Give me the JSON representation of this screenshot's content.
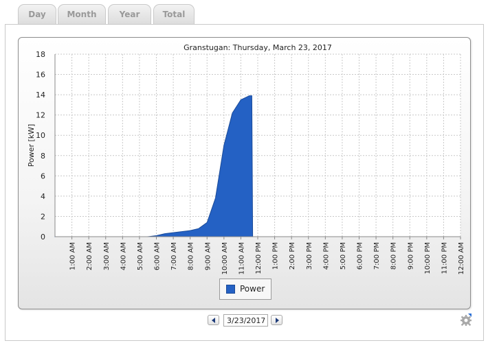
{
  "tabs": [
    {
      "label": "Day",
      "active": true
    },
    {
      "label": "Month",
      "active": false
    },
    {
      "label": "Year",
      "active": false
    },
    {
      "label": "Total",
      "active": false
    }
  ],
  "date_picker": {
    "value": "3/23/2017"
  },
  "icons": {
    "prev": "chevron-left-icon",
    "next": "chevron-right-icon",
    "settings": "gear-icon"
  },
  "colors": {
    "series": "#2461c4"
  },
  "chart_data": {
    "type": "area",
    "title": "Granstugan: Thursday, March 23, 2017",
    "xlabel": "",
    "ylabel": "Power [kW]",
    "ylim": [
      0,
      18
    ],
    "yticks": [
      0,
      2,
      4,
      6,
      8,
      10,
      12,
      14,
      16,
      18
    ],
    "xlim": [
      0,
      24
    ],
    "xtick_labels": [
      "1:00 AM",
      "2:00 AM",
      "3:00 AM",
      "4:00 AM",
      "5:00 AM",
      "6:00 AM",
      "7:00 AM",
      "8:00 AM",
      "9:00 AM",
      "10:00 AM",
      "11:00 AM",
      "12:00 PM",
      "1:00 PM",
      "2:00 PM",
      "3:00 PM",
      "4:00 PM",
      "5:00 PM",
      "6:00 PM",
      "7:00 PM",
      "8:00 PM",
      "9:00 PM",
      "10:00 PM",
      "11:00 PM",
      "12:00 AM"
    ],
    "grid": true,
    "legend_position": "bottom-center",
    "series": [
      {
        "name": "Power",
        "color": "#2461c4",
        "x": [
          0,
          5.5,
          6,
          6.5,
          7,
          7.5,
          8,
          8.5,
          9,
          9.5,
          10,
          10.5,
          11,
          11.5,
          11.65,
          11.7
        ],
        "values": [
          0,
          0,
          0.1,
          0.3,
          0.4,
          0.5,
          0.6,
          0.8,
          1.4,
          3.8,
          9.0,
          12.2,
          13.5,
          13.9,
          13.9,
          0
        ]
      }
    ]
  }
}
